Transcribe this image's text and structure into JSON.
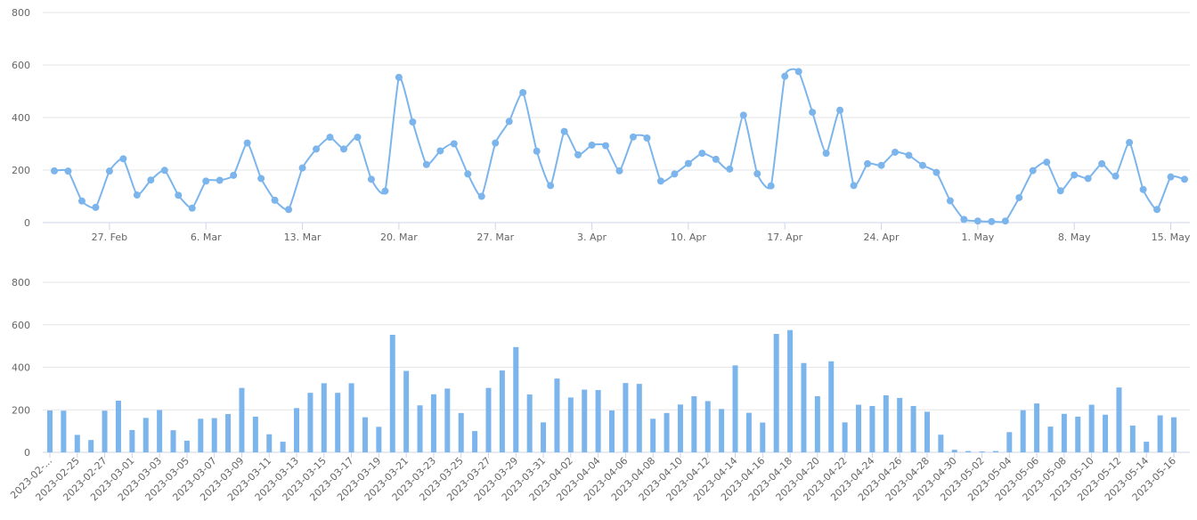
{
  "chart_data": [
    {
      "type": "line",
      "smooth": true,
      "markers": true,
      "color": "#7cb5ec",
      "grid": true,
      "ylim": [
        0,
        800
      ],
      "yticks": [
        0,
        200,
        400,
        600,
        800
      ],
      "x_start": "2023-02-23",
      "x_tick_labels": [
        "27. Feb",
        "6. Mar",
        "13. Mar",
        "20. Mar",
        "27. Mar",
        "3. Apr",
        "10. Apr",
        "17. Apr",
        "24. Apr",
        "1. May",
        "8. May",
        "15. May"
      ],
      "x_tick_dates": [
        "2023-02-27",
        "2023-03-06",
        "2023-03-13",
        "2023-03-20",
        "2023-03-27",
        "2023-04-03",
        "2023-04-10",
        "2023-04-17",
        "2023-04-24",
        "2023-05-01",
        "2023-05-08",
        "2023-05-15"
      ]
    },
    {
      "type": "bar",
      "color": "#7cb5ec",
      "grid": true,
      "ylim": [
        0,
        800
      ],
      "yticks": [
        0,
        200,
        400,
        600,
        800
      ],
      "x_tick_labels": [
        "2023-02-...",
        "2023-02-25",
        "2023-02-27",
        "2023-03-01",
        "2023-03-03",
        "2023-03-05",
        "2023-03-07",
        "2023-03-09",
        "2023-03-11",
        "2023-03-13",
        "2023-03-15",
        "2023-03-17",
        "2023-03-19",
        "2023-03-21",
        "2023-03-23",
        "2023-03-25",
        "2023-03-27",
        "2023-03-29",
        "2023-03-31",
        "2023-04-02",
        "2023-04-04",
        "2023-04-06",
        "2023-04-08",
        "2023-04-10",
        "2023-04-12",
        "2023-04-14",
        "2023-04-16",
        "2023-04-18",
        "2023-04-20",
        "2023-04-22",
        "2023-04-24",
        "2023-04-26",
        "2023-04-28",
        "2023-04-30",
        "2023-05-02",
        "2023-05-04",
        "2023-05-06",
        "2023-05-08",
        "2023-05-10",
        "2023-05-12",
        "2023-05-14",
        "2023-05-16"
      ]
    }
  ],
  "series": {
    "dates": [
      "2023-02-23",
      "2023-02-24",
      "2023-02-25",
      "2023-02-26",
      "2023-02-27",
      "2023-02-28",
      "2023-03-01",
      "2023-03-02",
      "2023-03-03",
      "2023-03-04",
      "2023-03-05",
      "2023-03-06",
      "2023-03-07",
      "2023-03-08",
      "2023-03-09",
      "2023-03-10",
      "2023-03-11",
      "2023-03-12",
      "2023-03-13",
      "2023-03-14",
      "2023-03-15",
      "2023-03-16",
      "2023-03-17",
      "2023-03-18",
      "2023-03-19",
      "2023-03-20",
      "2023-03-21",
      "2023-03-22",
      "2023-03-23",
      "2023-03-24",
      "2023-03-25",
      "2023-03-26",
      "2023-03-27",
      "2023-03-28",
      "2023-03-29",
      "2023-03-30",
      "2023-03-31",
      "2023-04-01",
      "2023-04-02",
      "2023-04-03",
      "2023-04-04",
      "2023-04-05",
      "2023-04-06",
      "2023-04-07",
      "2023-04-08",
      "2023-04-09",
      "2023-04-10",
      "2023-04-11",
      "2023-04-12",
      "2023-04-13",
      "2023-04-14",
      "2023-04-15",
      "2023-04-16",
      "2023-04-17",
      "2023-04-18",
      "2023-04-19",
      "2023-04-20",
      "2023-04-21",
      "2023-04-22",
      "2023-04-23",
      "2023-04-24",
      "2023-04-25",
      "2023-04-26",
      "2023-04-27",
      "2023-04-28",
      "2023-04-29",
      "2023-04-30",
      "2023-05-01",
      "2023-05-02",
      "2023-05-03",
      "2023-05-04",
      "2023-05-05",
      "2023-05-06",
      "2023-05-07",
      "2023-05-08",
      "2023-05-09",
      "2023-05-10",
      "2023-05-11",
      "2023-05-12",
      "2023-05-13",
      "2023-05-14",
      "2023-05-15",
      "2023-05-16"
    ],
    "values": [
      197,
      196,
      82,
      58,
      196,
      243,
      105,
      162,
      199,
      104,
      55,
      158,
      161,
      180,
      303,
      168,
      85,
      50,
      208,
      280,
      325,
      280,
      325,
      165,
      120,
      553,
      383,
      221,
      273,
      300,
      185,
      100,
      303,
      385,
      495,
      272,
      141,
      347,
      258,
      295,
      293,
      197,
      326,
      322,
      158,
      185,
      225,
      264,
      241,
      204,
      409,
      186,
      140,
      557,
      575,
      420,
      264,
      428,
      141,
      224,
      218,
      268,
      256,
      218,
      191,
      83,
      12,
      6,
      4,
      6,
      95,
      198,
      230,
      121,
      181,
      168,
      224,
      177,
      305,
      126,
      50,
      174,
      165
    ]
  }
}
